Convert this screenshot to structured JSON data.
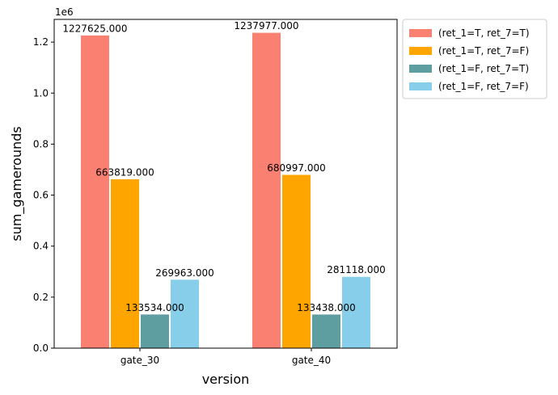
{
  "chart_data": {
    "type": "bar",
    "categories": [
      "gate_30",
      "gate_40"
    ],
    "series": [
      {
        "name": "(ret_1=T, ret_7=T)",
        "values": [
          1227625,
          1237977
        ],
        "labels": [
          "1227625.000",
          "1237977.000"
        ],
        "color": "#fa8072"
      },
      {
        "name": "(ret_1=T, ret_7=F)",
        "values": [
          663819,
          680997
        ],
        "labels": [
          "663819.000",
          "680997.000"
        ],
        "color": "#ffa500"
      },
      {
        "name": "(ret_1=F, ret_7=T)",
        "values": [
          133534,
          133438
        ],
        "labels": [
          "133534.000",
          "133438.000"
        ],
        "color": "#5f9ea0"
      },
      {
        "name": "(ret_1=F, ret_7=F)",
        "values": [
          269963,
          281118
        ],
        "labels": [
          "269963.000",
          "281118.000"
        ],
        "color": "#87ceeb"
      }
    ],
    "xlabel": "version",
    "ylabel": "sum_gamerounds",
    "y_scale_note": "1e6",
    "ylim": [
      0,
      1289000
    ],
    "yticks": [
      0,
      200000,
      400000,
      600000,
      800000,
      1000000,
      1200000
    ],
    "ytick_labels": [
      "0.0",
      "0.2",
      "0.4",
      "0.6",
      "0.8",
      "1.0",
      "1.2"
    ],
    "grid": false,
    "legend_position": "outside-right-top"
  }
}
